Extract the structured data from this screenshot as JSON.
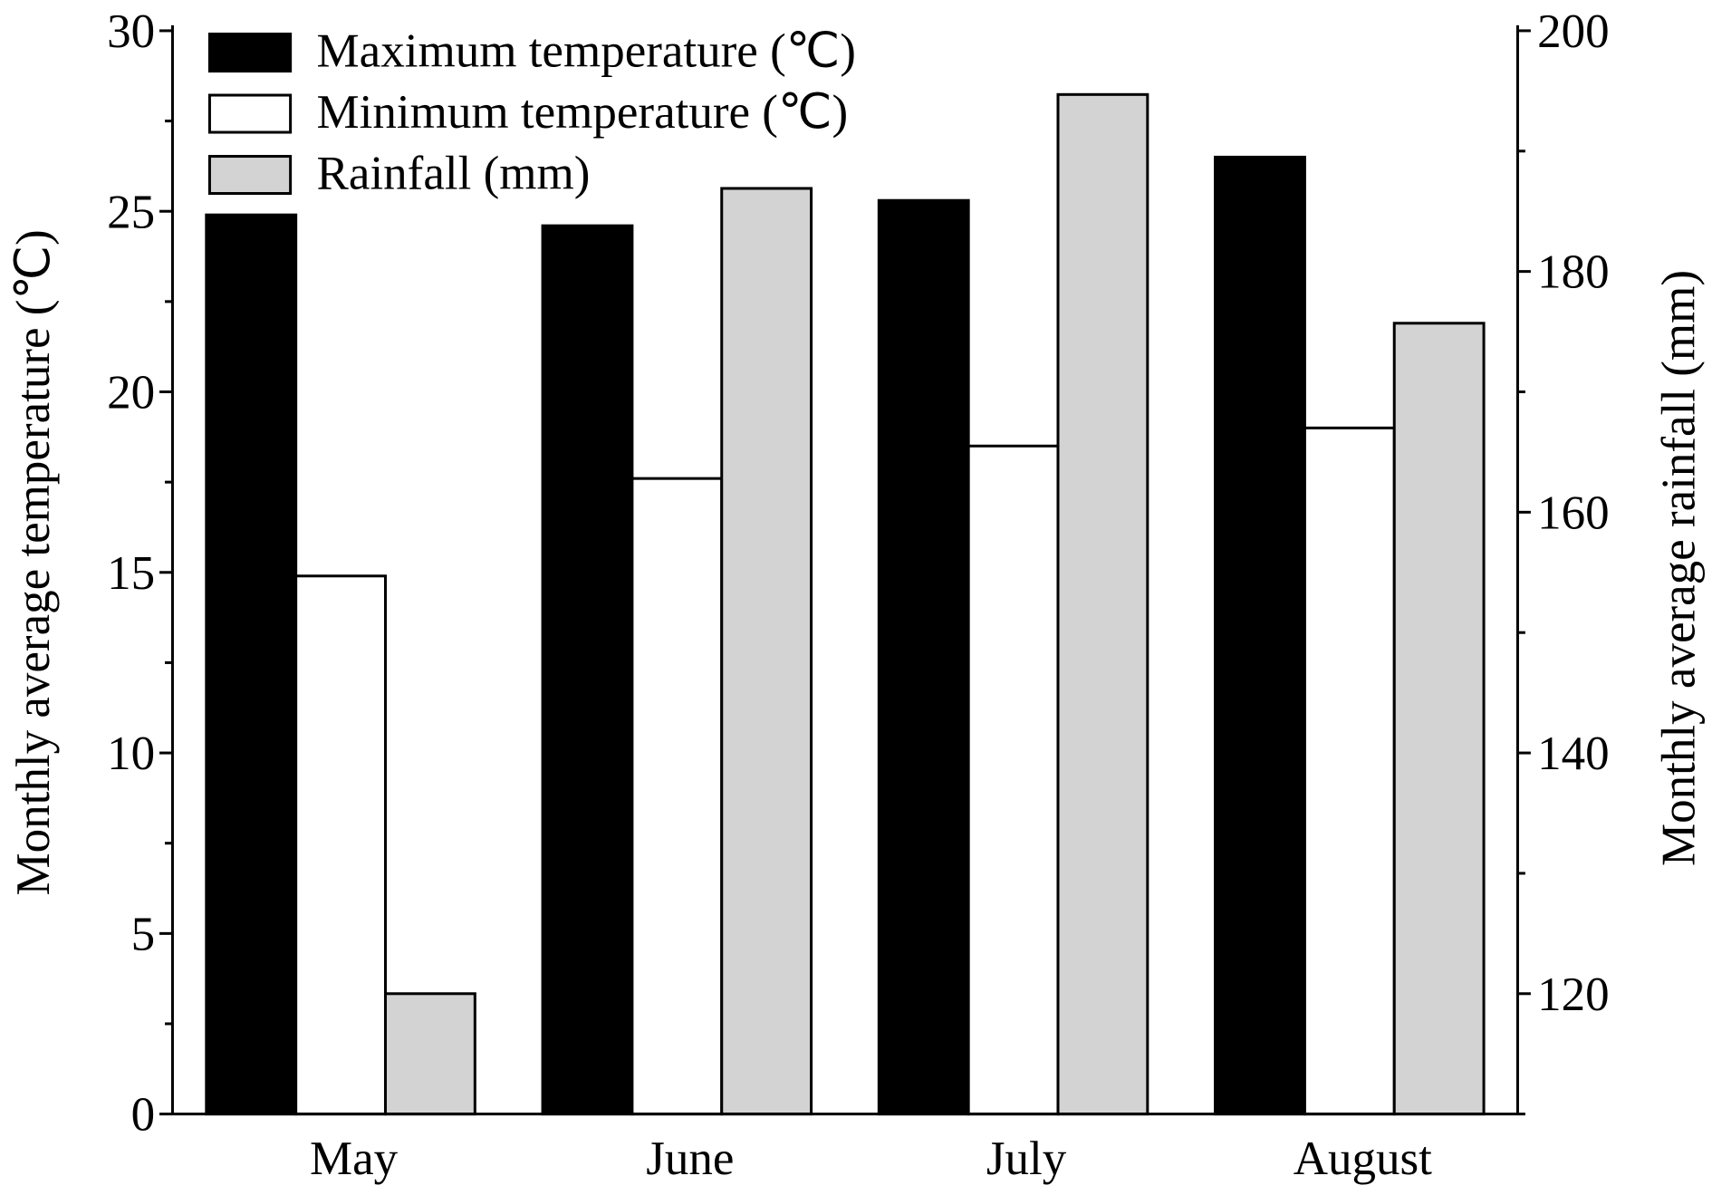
{
  "chart_data": {
    "type": "bar",
    "categories": [
      "May",
      "June",
      "July",
      "August"
    ],
    "series": [
      {
        "name": "Maximum temperature (℃)",
        "axis": "left",
        "color": "#000000",
        "values": [
          24.9,
          24.6,
          25.3,
          26.5
        ]
      },
      {
        "name": "Minimum temperature (℃)",
        "axis": "left",
        "color": "#ffffff",
        "values": [
          14.9,
          17.6,
          18.5,
          19.0
        ]
      },
      {
        "name": "Rainfall (mm)",
        "axis": "right",
        "color": "#d3d3d3",
        "values": [
          120,
          186.9,
          194.7,
          175.7
        ]
      }
    ],
    "ylabel": "Monthly average temperature (℃)",
    "ylabel_right": "Monthly average rainfall (mm)",
    "xlabel": "",
    "ylim": [
      0,
      30
    ],
    "ylim_right": [
      110,
      200
    ],
    "yticks": [
      0,
      5,
      10,
      15,
      20,
      25,
      30
    ],
    "yticks_right": [
      120,
      140,
      160,
      180,
      200
    ],
    "grid": false,
    "legend_position": "top-left"
  }
}
